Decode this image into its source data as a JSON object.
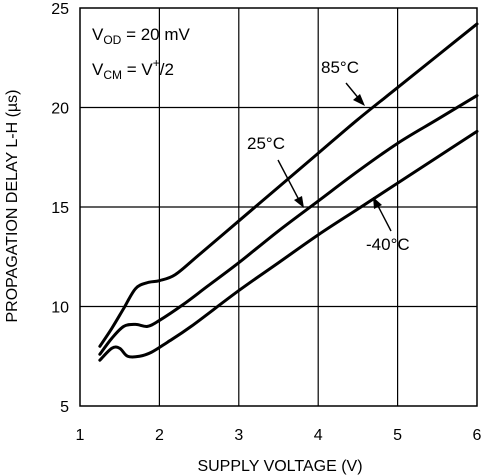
{
  "chart_data": {
    "type": "line",
    "xlabel": "SUPPLY VOLTAGE (V)",
    "ylabel": "PROPAGATION DELAY L-H (µs)",
    "xlim": [
      1,
      6
    ],
    "ylim": [
      5,
      25
    ],
    "x_ticks": [
      "1",
      "2",
      "3",
      "4",
      "5",
      "6"
    ],
    "y_ticks": [
      "5",
      "10",
      "15",
      "20",
      "25"
    ],
    "grid": true,
    "conditions": {
      "vod": {
        "base": "V",
        "sub": "OD",
        "rest": " = 20 mV"
      },
      "vcm": {
        "base": "V",
        "sub": "CM",
        "rest": " = V",
        "sup": "+",
        "tail": "/2"
      }
    },
    "series": [
      {
        "name": "85°C",
        "x": [
          1.25,
          1.4,
          1.55,
          1.7,
          1.85,
          2.0,
          2.2,
          2.5,
          3.0,
          3.5,
          4.0,
          4.5,
          5.0,
          5.5,
          6.0
        ],
        "y": [
          8.0,
          8.9,
          9.9,
          10.9,
          11.2,
          11.3,
          11.6,
          12.6,
          14.3,
          16.0,
          17.7,
          19.4,
          21.0,
          22.6,
          24.2
        ]
      },
      {
        "name": "25°C",
        "x": [
          1.25,
          1.4,
          1.55,
          1.7,
          1.85,
          2.0,
          2.3,
          2.6,
          3.0,
          3.5,
          4.0,
          4.5,
          5.0,
          5.5,
          6.0
        ],
        "y": [
          7.6,
          8.4,
          9.0,
          9.1,
          9.0,
          9.3,
          10.1,
          11.0,
          12.2,
          13.8,
          15.3,
          16.8,
          18.2,
          19.4,
          20.6
        ]
      },
      {
        "name": "-40°C",
        "x": [
          1.25,
          1.4,
          1.5,
          1.6,
          1.75,
          1.9,
          2.1,
          2.4,
          3.0,
          3.5,
          4.0,
          4.5,
          5.0,
          5.5,
          6.0
        ],
        "y": [
          7.3,
          7.9,
          7.9,
          7.5,
          7.5,
          7.7,
          8.2,
          9.0,
          10.8,
          12.2,
          13.6,
          14.9,
          16.2,
          17.5,
          18.8
        ]
      }
    ],
    "annotations": [
      {
        "text": "85°C",
        "series": 0
      },
      {
        "text": "25°C",
        "series": 1
      },
      {
        "text": "-40°C",
        "series": 2
      }
    ]
  }
}
